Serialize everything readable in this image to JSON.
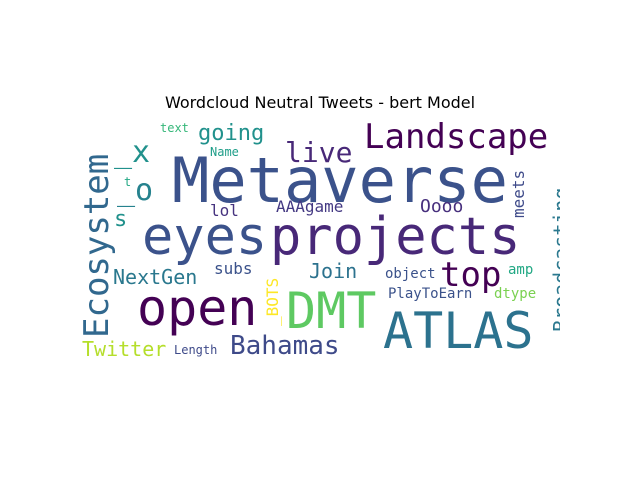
{
  "title": "Wordcloud Neutral Tweets - bert Model",
  "words": [
    {
      "text": "Metaverse",
      "color": "#3b528b"
    },
    {
      "text": "projects",
      "color": "#482878"
    },
    {
      "text": "eyes",
      "color": "#3b528b"
    },
    {
      "text": "Landscape",
      "color": "#440154"
    },
    {
      "text": "Ecosystem",
      "color": "#31688e"
    },
    {
      "text": "ATLAS",
      "color": "#2c728e"
    },
    {
      "text": "open",
      "color": "#440154"
    },
    {
      "text": "DMT",
      "color": "#5ec962"
    },
    {
      "text": "top",
      "color": "#440154"
    },
    {
      "text": "live",
      "color": "#482878"
    },
    {
      "text": "Bahamas",
      "color": "#3e4a89"
    },
    {
      "text": "Broadcasting",
      "color": "#2a788e"
    },
    {
      "text": "_x",
      "color": "#21918c"
    },
    {
      "text": "_o",
      "color": "#26828e"
    },
    {
      "text": "going",
      "color": "#21918c"
    },
    {
      "text": "Twitter",
      "color": "#b5de2b"
    },
    {
      "text": "NextGen",
      "color": "#2a788e"
    },
    {
      "text": "Join",
      "color": "#2c728e"
    },
    {
      "text": "s",
      "color": "#21918c"
    },
    {
      "text": "Oooo",
      "color": "#472f7d"
    },
    {
      "text": "AAAgame",
      "color": "#443983"
    },
    {
      "text": "meets",
      "color": "#3e4a89"
    },
    {
      "text": "lol",
      "color": "#46337f"
    },
    {
      "text": "subs",
      "color": "#3b528b"
    },
    {
      "text": "_BOTS",
      "color": "#fde725"
    },
    {
      "text": "amp",
      "color": "#22a884"
    },
    {
      "text": "PlayToEarn",
      "color": "#3b528b"
    },
    {
      "text": "object",
      "color": "#3b528b"
    },
    {
      "text": "dtype",
      "color": "#7ad151"
    },
    {
      "text": "Length",
      "color": "#3e4a89"
    },
    {
      "text": "text",
      "color": "#35b779"
    },
    {
      "text": "Name",
      "color": "#1f9e89"
    },
    {
      "text": "t",
      "color": "#22a884"
    }
  ]
}
